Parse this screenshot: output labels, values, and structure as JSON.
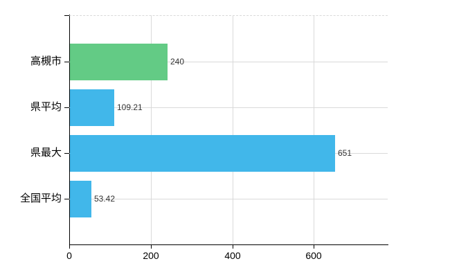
{
  "chart_data": {
    "type": "bar",
    "orientation": "horizontal",
    "title": "",
    "categories": [
      "高槻市",
      "県平均",
      "県最大",
      "全国平均"
    ],
    "values": [
      240,
      109.21,
      651,
      53.42
    ],
    "value_labels": [
      "240",
      "109.21",
      "651",
      "53.42"
    ],
    "bar_colors": [
      "#63cb85",
      "#41b7ea",
      "#41b7ea",
      "#41b7ea"
    ],
    "x_ticks": [
      0,
      200,
      400,
      600
    ],
    "x_tick_labels": [
      "0",
      "200",
      "400",
      "600"
    ],
    "xlim": [
      0,
      781.2
    ],
    "grid": true,
    "legend_position": "none",
    "colors": {
      "background": "#ffffff",
      "axis": "#000000",
      "gridline": "#d9d9d9",
      "value_label_text": "#333333",
      "tick_label_text": "#000000",
      "green_bar": "#63cb85",
      "blue_bar": "#41b7ea"
    }
  }
}
